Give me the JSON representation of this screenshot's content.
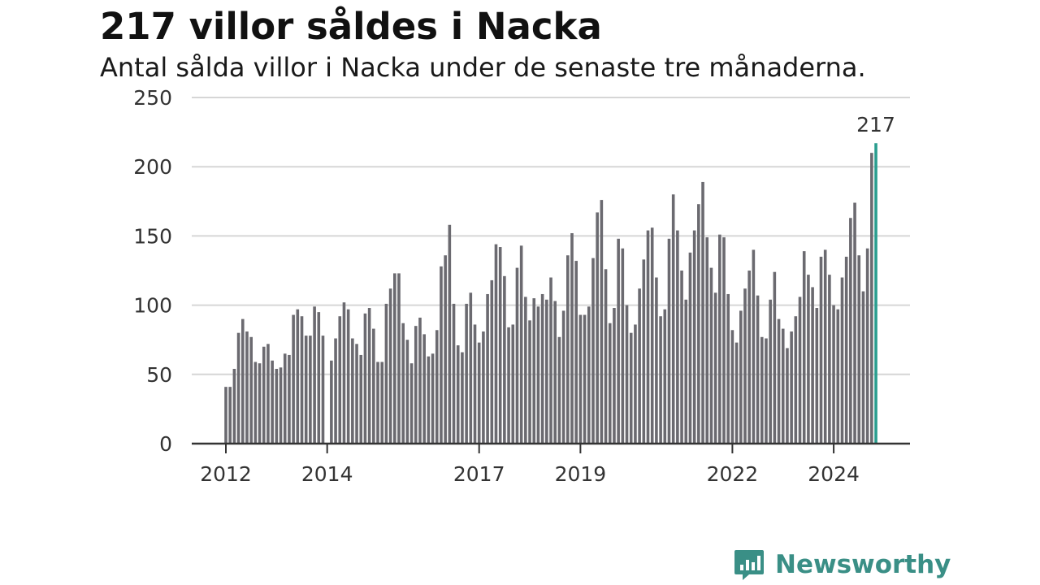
{
  "header": {
    "title": "217 villor såldes i Nacka",
    "subtitle": "Antal sålda villor i Nacka under de senaste tre månaderna."
  },
  "brand": {
    "name": "Newsworthy",
    "color": "#3a8f86"
  },
  "chart_data": {
    "type": "bar",
    "title": "217 villor såldes i Nacka",
    "subtitle": "Antal sålda villor i Nacka under de senaste tre månaderna.",
    "xlabel": "",
    "ylabel": "",
    "ylim": [
      0,
      250
    ],
    "yticks": [
      0,
      50,
      100,
      150,
      200,
      250
    ],
    "grid": true,
    "legend": "none",
    "bar_color": "#6b6a70",
    "highlight_color": "#2a9d8f",
    "x_tick_labels": [
      {
        "label": "2012",
        "index": 0
      },
      {
        "label": "2014",
        "index": 24
      },
      {
        "label": "2017",
        "index": 60
      },
      {
        "label": "2019",
        "index": 84
      },
      {
        "label": "2022",
        "index": 120
      },
      {
        "label": "2024",
        "index": 144
      }
    ],
    "highlight": {
      "index": 154,
      "label": "217"
    },
    "values": [
      41,
      41,
      54,
      80,
      90,
      81,
      77,
      59,
      58,
      70,
      72,
      60,
      54,
      55,
      65,
      64,
      93,
      97,
      92,
      78,
      78,
      99,
      95,
      78,
      0,
      60,
      76,
      92,
      102,
      97,
      76,
      72,
      64,
      94,
      98,
      83,
      59,
      59,
      101,
      112,
      123,
      123,
      87,
      75,
      58,
      85,
      91,
      79,
      63,
      65,
      82,
      128,
      136,
      158,
      101,
      71,
      66,
      101,
      109,
      86,
      73,
      81,
      108,
      118,
      144,
      142,
      121,
      84,
      86,
      127,
      143,
      106,
      89,
      105,
      99,
      108,
      104,
      120,
      103,
      77,
      96,
      136,
      152,
      132,
      93,
      93,
      99,
      134,
      167,
      176,
      126,
      87,
      98,
      148,
      141,
      100,
      80,
      86,
      112,
      133,
      154,
      156,
      120,
      92,
      97,
      148,
      180,
      154,
      125,
      104,
      138,
      154,
      173,
      189,
      149,
      127,
      109,
      151,
      149,
      108,
      82,
      73,
      96,
      112,
      125,
      140,
      107,
      77,
      76,
      104,
      124,
      90,
      83,
      69,
      81,
      92,
      106,
      139,
      122,
      113,
      98,
      135,
      140,
      122,
      100,
      97,
      120,
      135,
      163,
      174,
      136,
      110,
      141,
      210,
      217
    ]
  }
}
